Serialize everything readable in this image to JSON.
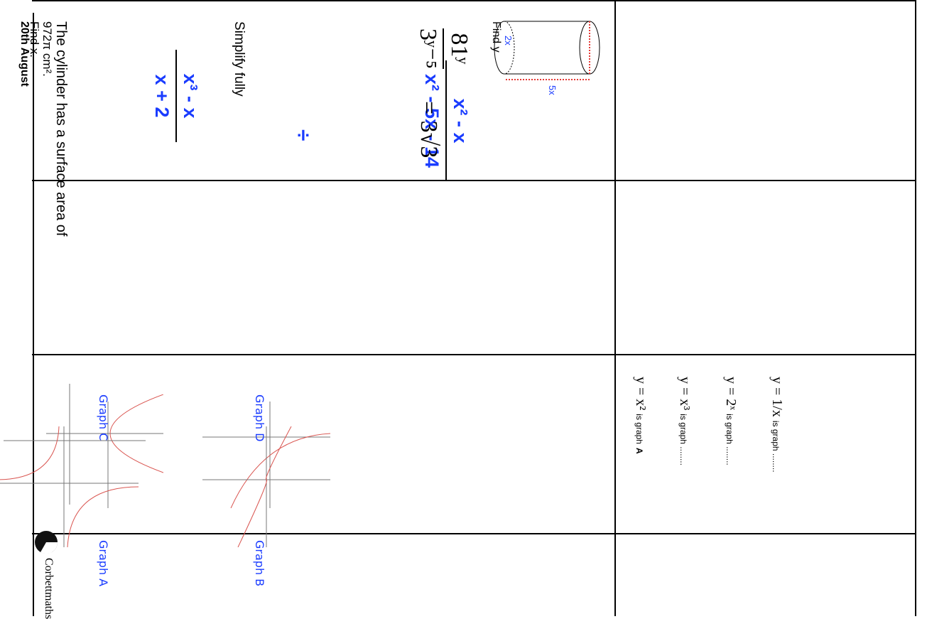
{
  "header": {
    "date": "20th August"
  },
  "q1": {
    "line1": "The cylinder has a surface area of",
    "line2": "972π cm².",
    "line3": "Find x.",
    "diameter_label": "2x",
    "length_label": "5x"
  },
  "q2": {
    "instruction": "Simplify fully",
    "frac1_num": "x³ - x",
    "frac1_den": "x + 2",
    "operator": "÷",
    "frac2_num": "x² - x",
    "frac2_den": "x² - 5x - 14"
  },
  "q3": {
    "lhs_num": "81ʸ",
    "lhs_den": "3ʸ⁻⁵",
    "rhs": "= 3√3",
    "instruction": "Find y"
  },
  "q4": {
    "graphs": [
      "Graph A",
      "Graph B",
      "Graph C",
      "Graph D"
    ],
    "relations": [
      {
        "eq": "y = x²",
        "suffix": "is graph",
        "answer": "A"
      },
      {
        "eq": "y = x³",
        "suffix": "is graph ........"
      },
      {
        "eq": "y = 2ˣ",
        "suffix": "is graph ........"
      },
      {
        "eq": "y = 1/x",
        "suffix": "is graph ........"
      }
    ]
  },
  "footer": {
    "brand": "Corbettmaths"
  },
  "colors": {
    "accent": "#1a3cff",
    "curve": "#d9544f",
    "dotted": "#e53935"
  }
}
